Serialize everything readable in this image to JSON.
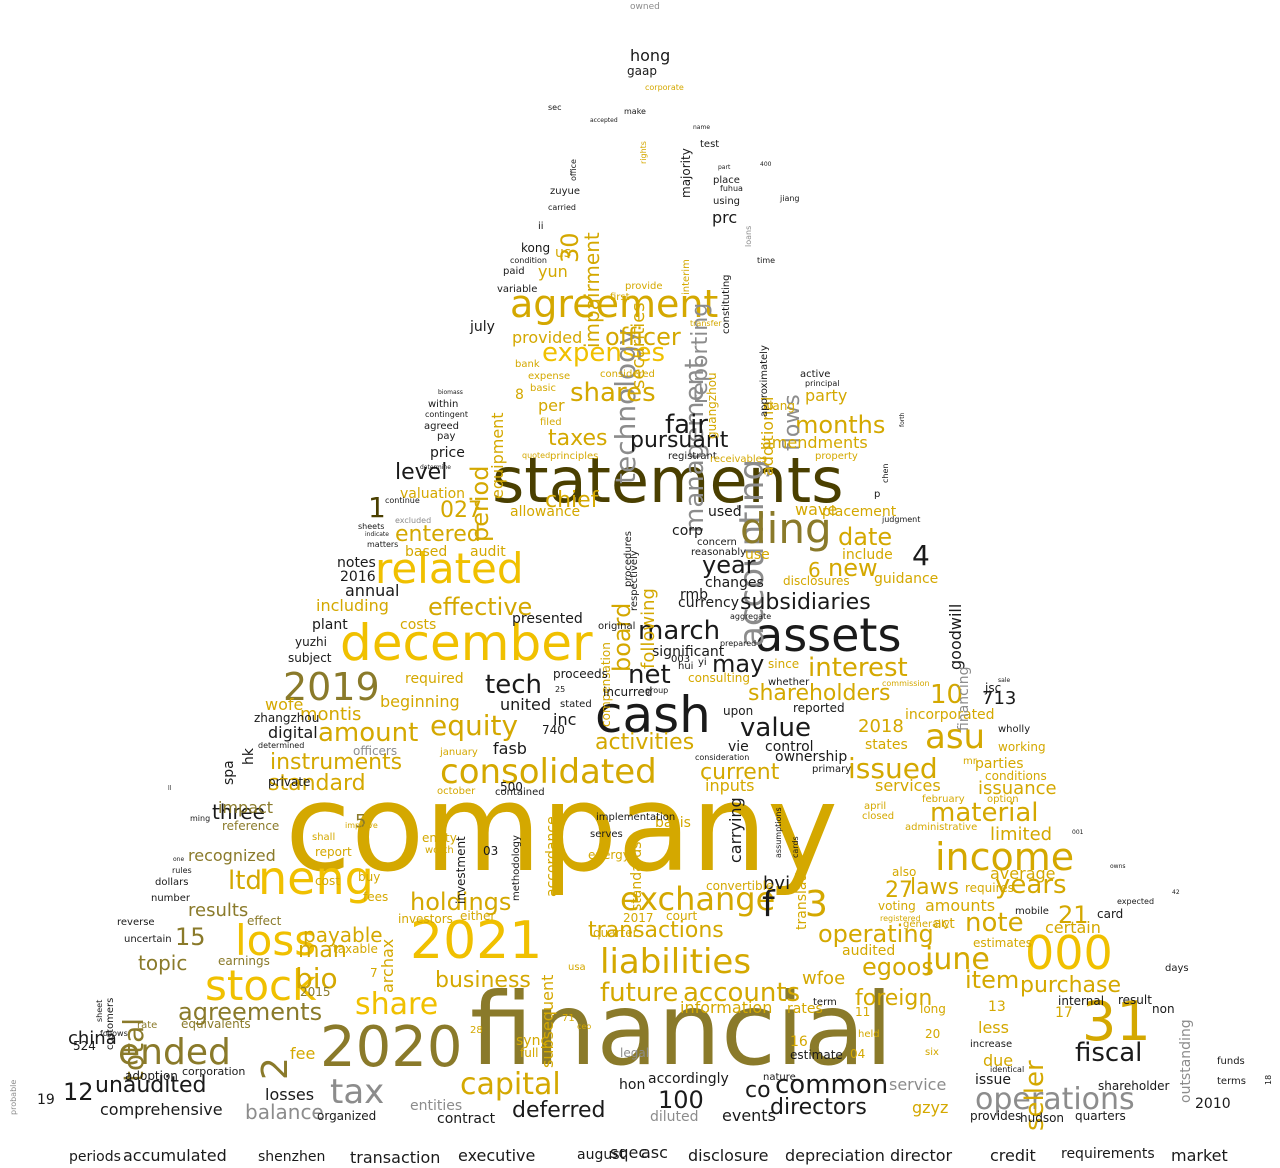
{
  "colors": {
    "gold": "#d4a800",
    "yellow": "#f0c000",
    "pale": "#e8c84a",
    "olive": "#8a7a2a",
    "dark": "#4a3f00",
    "black": "#1a1a1a",
    "grey": "#8c8c8c",
    "lightgrey": "#b0b0b0",
    "white": "#ffffff"
  },
  "words": [
    {
      "t": "owned"
    },
    {
      "t": "company"
    },
    {
      "t": "financial"
    },
    {
      "t": "statements"
    },
    {
      "t": "2020"
    },
    {
      "t": "2021"
    },
    {
      "t": "december"
    },
    {
      "t": "cash"
    },
    {
      "t": "assets"
    },
    {
      "t": "neng"
    },
    {
      "t": "related"
    },
    {
      "t": "agreement"
    },
    {
      "t": "accounting"
    },
    {
      "t": "loss"
    },
    {
      "t": "stock"
    },
    {
      "t": "000"
    },
    {
      "t": "31"
    },
    {
      "t": "ding"
    },
    {
      "t": "income"
    },
    {
      "t": "2019"
    },
    {
      "t": "ended"
    },
    {
      "t": "liabilities"
    },
    {
      "t": "consolidated"
    },
    {
      "t": "tax"
    },
    {
      "t": "operations"
    },
    {
      "t": "capital"
    },
    {
      "t": "exchange"
    },
    {
      "t": "management"
    },
    {
      "t": "expenses"
    },
    {
      "t": "asu"
    },
    {
      "t": "value"
    },
    {
      "t": "issued"
    },
    {
      "t": "material"
    },
    {
      "t": "years"
    },
    {
      "t": "share"
    },
    {
      "t": "fiscal"
    },
    {
      "t": "seller"
    },
    {
      "t": "note"
    },
    {
      "t": "june"
    },
    {
      "t": "technology"
    },
    {
      "t": "shares"
    },
    {
      "t": "fair"
    },
    {
      "t": "taxes"
    },
    {
      "t": "period"
    },
    {
      "t": "march"
    },
    {
      "t": "board"
    },
    {
      "t": "equity"
    },
    {
      "t": "interest"
    },
    {
      "t": "subsidiaries"
    },
    {
      "t": "shareholders"
    },
    {
      "t": "effective"
    },
    {
      "t": "entered"
    },
    {
      "t": "amount"
    },
    {
      "t": "instruments"
    },
    {
      "t": "activities"
    },
    {
      "t": "current"
    },
    {
      "t": "standard"
    },
    {
      "t": "holdings"
    },
    {
      "t": "transactions"
    },
    {
      "t": "accounts"
    },
    {
      "t": "future"
    },
    {
      "t": "business"
    },
    {
      "t": "agreements"
    },
    {
      "t": "bio"
    },
    {
      "t": "total"
    },
    {
      "t": "unaudited"
    },
    {
      "t": "common"
    },
    {
      "t": "directors"
    },
    {
      "t": "deferred"
    },
    {
      "t": "balance"
    },
    {
      "t": "comprehensive"
    },
    {
      "t": "100"
    },
    {
      "t": "12"
    },
    {
      "t": "co"
    },
    {
      "t": "ltd"
    },
    {
      "t": "results"
    },
    {
      "t": "three"
    },
    {
      "t": "recognized"
    },
    {
      "t": "impact"
    },
    {
      "t": "china"
    },
    {
      "t": "topic"
    },
    {
      "t": "payable"
    },
    {
      "t": "man"
    },
    {
      "t": "egoos"
    },
    {
      "t": "item"
    },
    {
      "t": "purchase"
    },
    {
      "t": "operating"
    },
    {
      "t": "foreign"
    },
    {
      "t": "laws"
    },
    {
      "t": "net"
    },
    {
      "t": "tech"
    },
    {
      "t": "may"
    },
    {
      "t": "year"
    },
    {
      "t": "new"
    },
    {
      "t": "date"
    },
    {
      "t": "months"
    },
    {
      "t": "officer"
    },
    {
      "t": "chief"
    },
    {
      "t": "level"
    },
    {
      "t": "pursuant"
    },
    {
      "t": "flows"
    },
    {
      "t": "reporting"
    },
    {
      "t": "impairment"
    },
    {
      "t": "securities"
    },
    {
      "t": "30"
    },
    {
      "t": "027"
    },
    {
      "t": "10"
    },
    {
      "t": "4"
    },
    {
      "t": "6"
    },
    {
      "t": "3"
    },
    {
      "t": "f"
    },
    {
      "t": "5"
    },
    {
      "t": "15"
    },
    {
      "t": "21"
    },
    {
      "t": "27"
    },
    {
      "t": "1"
    },
    {
      "t": "2018"
    },
    {
      "t": "incorporated"
    },
    {
      "t": "limited"
    },
    {
      "t": "issuance"
    },
    {
      "t": "services"
    },
    {
      "t": "inputs"
    },
    {
      "t": "ownership"
    },
    {
      "t": "control"
    },
    {
      "t": "vie"
    },
    {
      "t": "fasb"
    },
    {
      "t": "inc"
    },
    {
      "t": "united"
    },
    {
      "t": "beginning"
    },
    {
      "t": "montis"
    },
    {
      "t": "digital"
    },
    {
      "t": "required"
    },
    {
      "t": "including"
    },
    {
      "t": "annual"
    },
    {
      "t": "notes"
    },
    {
      "t": "2016"
    },
    {
      "t": "plant"
    },
    {
      "t": "changes"
    },
    {
      "t": "currency"
    },
    {
      "t": "rmb"
    },
    {
      "t": "significant"
    },
    {
      "t": "following"
    },
    {
      "t": "used"
    },
    {
      "t": "corp"
    },
    {
      "t": "include"
    },
    {
      "t": "guidance"
    },
    {
      "t": "wave"
    },
    {
      "t": "placement"
    },
    {
      "t": "amendments"
    },
    {
      "t": "party"
    },
    {
      "t": "additional"
    },
    {
      "t": "per"
    },
    {
      "t": "equipment"
    },
    {
      "t": "provided"
    },
    {
      "t": "yun"
    },
    {
      "t": "us"
    },
    {
      "t": "prc"
    },
    {
      "t": "hong"
    },
    {
      "t": "gaap"
    },
    {
      "t": "kong"
    },
    {
      "t": "july"
    },
    {
      "t": "price"
    },
    {
      "t": "valuation"
    },
    {
      "t": "allowance"
    },
    {
      "t": "based"
    },
    {
      "t": "audit"
    },
    {
      "t": "presented"
    },
    {
      "t": "costs"
    },
    {
      "t": "yuzhi"
    },
    {
      "t": "subject"
    },
    {
      "t": "zhangzhou"
    },
    {
      "t": "spa"
    },
    {
      "t": "hk"
    },
    {
      "t": "reference"
    },
    {
      "t": "report"
    },
    {
      "t": "wofe"
    },
    {
      "t": "losses"
    },
    {
      "t": "fee"
    },
    {
      "t": "2015"
    },
    {
      "t": "wfoe"
    },
    {
      "t": "information"
    },
    {
      "t": "accordingly"
    },
    {
      "t": "hon"
    },
    {
      "t": "entities"
    },
    {
      "t": "contract"
    },
    {
      "t": "organized"
    },
    {
      "t": "service"
    },
    {
      "t": "issue"
    },
    {
      "t": "due"
    },
    {
      "t": "less"
    },
    {
      "t": "certain"
    },
    {
      "t": "amounts"
    },
    {
      "t": "act"
    },
    {
      "t": "audited"
    },
    {
      "t": "states"
    },
    {
      "t": "goodwill"
    },
    {
      "t": "financing"
    },
    {
      "t": "outstanding"
    },
    {
      "t": "gzyz"
    },
    {
      "t": "bvi"
    },
    {
      "t": "carrying"
    },
    {
      "t": "translation"
    },
    {
      "t": "basis"
    },
    {
      "t": "standards"
    },
    {
      "t": "accordance"
    },
    {
      "t": "subsequent"
    },
    {
      "t": "archax"
    },
    {
      "t": "methodology"
    },
    {
      "t": "investment"
    },
    {
      "t": "compensation"
    },
    {
      "t": "jsc"
    },
    {
      "t": "713"
    },
    {
      "t": "2010"
    },
    {
      "t": "hudson"
    },
    {
      "t": "19"
    },
    {
      "t": "524"
    },
    {
      "t": "adoption"
    },
    {
      "t": "corporation"
    },
    {
      "t": "periods"
    },
    {
      "t": "accumulated"
    },
    {
      "t": "shenzhen"
    },
    {
      "t": "transaction"
    },
    {
      "t": "executive"
    },
    {
      "t": "disclosure"
    },
    {
      "t": "depreciation"
    },
    {
      "t": "director"
    },
    {
      "t": "credit"
    },
    {
      "t": "requirements"
    },
    {
      "t": "market"
    },
    {
      "t": "august"
    },
    {
      "t": "sqec"
    },
    {
      "t": "asc"
    },
    {
      "t": "events"
    },
    {
      "t": "diluted"
    },
    {
      "t": "card"
    },
    {
      "t": "days"
    },
    {
      "t": "non"
    },
    {
      "t": "funds"
    },
    {
      "t": "terms"
    },
    {
      "t": "quarters"
    },
    {
      "t": "shareholder"
    },
    {
      "t": "provides"
    },
    {
      "t": "working"
    },
    {
      "t": "parties"
    },
    {
      "t": "conditions"
    },
    {
      "t": "average"
    },
    {
      "t": "estimates"
    },
    {
      "t": "internal"
    },
    {
      "t": "result"
    },
    {
      "t": "estimate"
    },
    {
      "t": "rates"
    },
    {
      "t": "16"
    },
    {
      "t": "11"
    },
    {
      "t": "13"
    },
    {
      "t": "17"
    },
    {
      "t": "20"
    },
    {
      "t": "04"
    },
    {
      "t": "cards"
    },
    {
      "t": "assumptions"
    },
    {
      "t": "disclosures"
    },
    {
      "t": "use"
    },
    {
      "t": "since"
    },
    {
      "t": "reported"
    },
    {
      "t": "upon"
    },
    {
      "t": "consulting"
    },
    {
      "t": "incurred"
    },
    {
      "t": "proceeds"
    },
    {
      "t": "sec"
    },
    {
      "t": "make"
    },
    {
      "t": "majority"
    },
    {
      "t": "test"
    },
    {
      "t": "place"
    },
    {
      "t": "using"
    },
    {
      "t": "zuyue"
    },
    {
      "t": "paid"
    },
    {
      "t": "variable"
    },
    {
      "t": "within"
    },
    {
      "t": "agreed"
    },
    {
      "t": "sheets"
    },
    {
      "t": "matters"
    },
    {
      "t": "dollars"
    },
    {
      "t": "number"
    },
    {
      "t": "reverse"
    },
    {
      "t": "uncertain"
    },
    {
      "t": "rules"
    },
    {
      "t": "customers"
    },
    {
      "t": "rate"
    },
    {
      "t": "equivalents"
    },
    {
      "t": "earnings"
    },
    {
      "t": "effect"
    },
    {
      "t": "private"
    },
    {
      "t": "officers"
    },
    {
      "t": "500"
    },
    {
      "t": "740"
    },
    {
      "t": "03"
    },
    {
      "t": "2017"
    },
    {
      "t": "quarter"
    },
    {
      "t": "usa"
    },
    {
      "t": "ceo"
    },
    {
      "t": "sync"
    },
    {
      "t": "full"
    },
    {
      "t": "legal"
    },
    {
      "t": "nature"
    },
    {
      "t": "term"
    },
    {
      "t": "held"
    },
    {
      "t": "six"
    },
    {
      "t": "primary"
    },
    {
      "t": "mr"
    },
    {
      "t": "april"
    },
    {
      "t": "closed"
    },
    {
      "t": "february"
    },
    {
      "t": "option"
    },
    {
      "t": "voting"
    },
    {
      "t": "mobile"
    },
    {
      "t": "requires"
    },
    {
      "t": "also"
    },
    {
      "t": "administrative"
    },
    {
      "t": "convertible"
    },
    {
      "t": "court"
    },
    {
      "t": "either"
    },
    {
      "t": "investors"
    },
    {
      "t": "buy"
    },
    {
      "t": "fees"
    },
    {
      "t": "taxable"
    },
    {
      "t": "cost"
    },
    {
      "t": "energy"
    },
    {
      "t": "serves"
    },
    {
      "t": "entity"
    },
    {
      "t": "worth"
    },
    {
      "t": "shall"
    },
    {
      "t": "improve"
    },
    {
      "t": "implementation"
    },
    {
      "t": "contained"
    },
    {
      "t": "october"
    },
    {
      "t": "january"
    },
    {
      "t": "whether"
    },
    {
      "t": "consideration"
    },
    {
      "t": "group"
    },
    {
      "t": "stated"
    },
    {
      "t": "original"
    },
    {
      "t": "aggregate"
    },
    {
      "t": "prepared"
    },
    {
      "t": "hui"
    },
    {
      "t": "yi"
    },
    {
      "t": "003"
    },
    {
      "t": "concern"
    },
    {
      "t": "reasonably"
    },
    {
      "t": "respectively"
    },
    {
      "t": "procedures"
    },
    {
      "t": "guangzhou"
    },
    {
      "t": "xiang"
    },
    {
      "t": "registrant"
    },
    {
      "t": "receivables"
    },
    {
      "t": "property"
    },
    {
      "t": "active"
    },
    {
      "t": "principal"
    },
    {
      "t": "approximately"
    },
    {
      "t": "constituting"
    },
    {
      "t": "time"
    },
    {
      "t": "fuhua"
    },
    {
      "t": "jiang"
    },
    {
      "t": "loans"
    },
    {
      "t": "part"
    },
    {
      "t": "name"
    },
    {
      "t": "400"
    },
    {
      "t": "biomass"
    },
    {
      "t": "contingent"
    },
    {
      "t": "pay"
    },
    {
      "t": "basic"
    },
    {
      "t": "expense"
    },
    {
      "t": "bank"
    },
    {
      "t": "filed"
    },
    {
      "t": "quoted"
    },
    {
      "t": "principles"
    },
    {
      "t": "considered"
    },
    {
      "t": "interim"
    },
    {
      "t": "transfer"
    },
    {
      "t": "first"
    },
    {
      "t": "provide"
    },
    {
      "t": "condition"
    },
    {
      "t": "ii"
    },
    {
      "t": "carried"
    },
    {
      "t": "office"
    },
    {
      "t": "accepted"
    },
    {
      "t": "corporate"
    },
    {
      "t": "rights"
    },
    {
      "t": "8"
    },
    {
      "t": "7"
    },
    {
      "t": "2"
    },
    {
      "t": "25"
    },
    {
      "t": "71"
    },
    {
      "t": "28"
    },
    {
      "t": "18"
    },
    {
      "t": "42"
    },
    {
      "t": "001"
    },
    {
      "t": "owns"
    },
    {
      "t": "expected"
    },
    {
      "t": "identical"
    },
    {
      "t": "increase"
    },
    {
      "t": "long"
    },
    {
      "t": "generally"
    },
    {
      "t": "registered"
    },
    {
      "t": "wholly"
    },
    {
      "t": "commission"
    },
    {
      "t": "sale"
    },
    {
      "t": "determined"
    },
    {
      "t": "sheet"
    },
    {
      "t": "follows"
    },
    {
      "t": "one"
    },
    {
      "t": "ming"
    },
    {
      "t": "probable"
    },
    {
      "t": "ll"
    },
    {
      "t": "chen"
    },
    {
      "t": "p"
    },
    {
      "t": "judgment"
    },
    {
      "t": "forth"
    },
    {
      "t": "continue"
    },
    {
      "t": "excluded"
    },
    {
      "t": "indicate"
    },
    {
      "t": "determine"
    }
  ]
}
